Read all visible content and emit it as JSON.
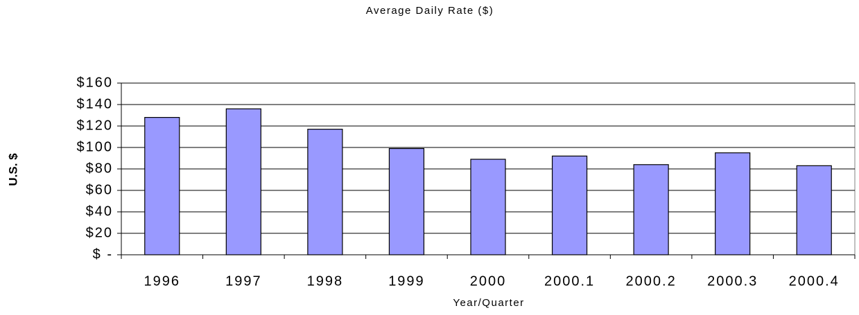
{
  "chart_data": {
    "type": "bar",
    "title": "Average Daily Rate ($)",
    "x_label": "Year/Quarter",
    "y_label": "U.S. $",
    "categories": [
      "1996",
      "1997",
      "1998",
      "1999",
      "2000",
      "2000.1",
      "2000.2",
      "2000.3",
      "2000.4"
    ],
    "values": [
      128,
      136,
      117,
      99,
      89,
      92,
      84,
      95,
      83
    ],
    "color": "#9999ff",
    "ylim": [
      0,
      160
    ],
    "yticks": [
      {
        "value": 0,
        "label": "$ -"
      },
      {
        "value": 20,
        "label": "$20"
      },
      {
        "value": 40,
        "label": "$40"
      },
      {
        "value": 60,
        "label": "$60"
      },
      {
        "value": 80,
        "label": "$80"
      },
      {
        "value": 100,
        "label": "$100"
      },
      {
        "value": 120,
        "label": "$120"
      },
      {
        "value": 140,
        "label": "$140"
      },
      {
        "value": 160,
        "label": "$160"
      }
    ],
    "grid": true
  }
}
